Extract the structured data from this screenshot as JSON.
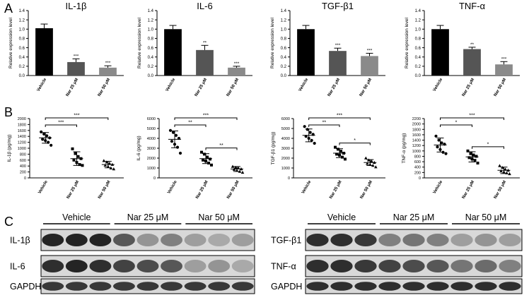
{
  "figure": {
    "panel_labels": [
      "A",
      "B",
      "C"
    ]
  },
  "chart_data": [
    {
      "type": "bar",
      "panel": "A",
      "title": "IL-1β",
      "ylabel": "Relative expression level",
      "categories": [
        "Vehicle",
        "Nar 25 μM",
        "Nar 50 μM"
      ],
      "values": [
        1.02,
        0.29,
        0.17
      ],
      "errors": [
        0.09,
        0.07,
        0.04
      ],
      "sig": [
        "",
        "***",
        "***"
      ],
      "ylim": [
        0,
        1.4
      ],
      "yticks": [
        "0.0",
        "0.2",
        "0.4",
        "0.6",
        "0.8",
        "1.0",
        "1.2",
        "1.4"
      ],
      "colors": [
        "#000000",
        "#555555",
        "#8a8a8a"
      ]
    },
    {
      "type": "bar",
      "panel": "A",
      "title": "IL-6",
      "ylabel": "Relative expression level",
      "categories": [
        "Vehicle",
        "Nar 25 μM",
        "Nar 50 μM"
      ],
      "values": [
        1.0,
        0.55,
        0.17
      ],
      "errors": [
        0.08,
        0.1,
        0.03
      ],
      "sig": [
        "",
        "**",
        "***"
      ],
      "ylim": [
        0,
        1.4
      ],
      "yticks": [
        "0.0",
        "0.2",
        "0.4",
        "0.6",
        "0.8",
        "1.0",
        "1.2",
        "1.4"
      ],
      "colors": [
        "#000000",
        "#555555",
        "#8a8a8a"
      ]
    },
    {
      "type": "bar",
      "panel": "A",
      "title": "TGF-β1",
      "ylabel": "Relative expression level",
      "categories": [
        "Vehicle",
        "Nar 25 μM",
        "Nar 50 μM"
      ],
      "values": [
        1.0,
        0.53,
        0.42
      ],
      "errors": [
        0.08,
        0.06,
        0.06
      ],
      "sig": [
        "",
        "***",
        "***"
      ],
      "ylim": [
        0,
        1.4
      ],
      "yticks": [
        "0.0",
        "0.2",
        "0.4",
        "0.6",
        "0.8",
        "1.0",
        "1.2",
        "1.4"
      ],
      "colors": [
        "#000000",
        "#555555",
        "#8a8a8a"
      ]
    },
    {
      "type": "bar",
      "panel": "A",
      "title": "TNF-α",
      "ylabel": "Relative expression level",
      "categories": [
        "Vehicle",
        "Nar 25 μM",
        "Nar 50 μM"
      ],
      "values": [
        1.0,
        0.57,
        0.24
      ],
      "errors": [
        0.08,
        0.04,
        0.06
      ],
      "sig": [
        "",
        "**",
        "***"
      ],
      "ylim": [
        0,
        1.4
      ],
      "yticks": [
        "0.0",
        "0.2",
        "0.4",
        "0.6",
        "0.8",
        "1.0",
        "1.2",
        "1.4"
      ],
      "colors": [
        "#000000",
        "#555555",
        "#8a8a8a"
      ]
    },
    {
      "type": "scatter",
      "panel": "B",
      "ylabel": "IL-1β (pg/mg)",
      "categories": [
        "Vehicle",
        "Nar 25 μM",
        "Nar 50 μM"
      ],
      "ylim": [
        0,
        2000
      ],
      "yticks": [
        "0",
        "200",
        "400",
        "600",
        "800",
        "1000",
        "1200",
        "1400",
        "1600",
        "1800",
        "2000"
      ],
      "groups": [
        {
          "marker": "circle",
          "mean": 1350,
          "sd": 180,
          "points": [
            1550,
            1480,
            1420,
            1350,
            1300,
            1260,
            1200,
            1100
          ]
        },
        {
          "marker": "square",
          "mean": 650,
          "sd": 230,
          "points": [
            980,
            820,
            720,
            650,
            600,
            520,
            450,
            420
          ]
        },
        {
          "marker": "triangle",
          "mean": 450,
          "sd": 110,
          "points": [
            580,
            530,
            490,
            450,
            420,
            380,
            330,
            300
          ]
        }
      ],
      "brackets": [
        {
          "from": 0,
          "to": 1,
          "label": "***"
        },
        {
          "from": 0,
          "to": 2,
          "label": "***"
        }
      ]
    },
    {
      "type": "scatter",
      "panel": "B",
      "ylabel": "IL-6 (pg/mg)",
      "categories": [
        "Vehicle",
        "Nar 25 μM",
        "Nar 50 μM"
      ],
      "ylim": [
        0,
        6000
      ],
      "yticks": [
        "0",
        "1000",
        "2000",
        "3000",
        "4000",
        "5000",
        "6000"
      ],
      "groups": [
        {
          "marker": "circle",
          "mean": 3900,
          "sd": 850,
          "points": [
            4800,
            4600,
            4300,
            4000,
            3700,
            3400,
            3100,
            2500
          ]
        },
        {
          "marker": "square",
          "mean": 1950,
          "sd": 500,
          "points": [
            2600,
            2400,
            2100,
            1900,
            1800,
            1700,
            1500,
            1300
          ]
        },
        {
          "marker": "triangle",
          "mean": 900,
          "sd": 250,
          "points": [
            1150,
            1050,
            1000,
            900,
            850,
            750,
            650,
            550
          ]
        }
      ],
      "brackets": [
        {
          "from": 0,
          "to": 1,
          "label": "**"
        },
        {
          "from": 0,
          "to": 2,
          "label": "***"
        },
        {
          "from": 1,
          "to": 2,
          "label": "**"
        }
      ]
    },
    {
      "type": "scatter",
      "panel": "B",
      "ylabel": "TGF-β1 (pg/mg)",
      "categories": [
        "Vehicle",
        "Nar 25 μM",
        "Nar 50 μM"
      ],
      "ylim": [
        0,
        6000
      ],
      "yticks": [
        "0",
        "1000",
        "2000",
        "3000",
        "4000",
        "5000",
        "6000"
      ],
      "groups": [
        {
          "marker": "circle",
          "mean": 4300,
          "sd": 650,
          "points": [
            5200,
            4900,
            4600,
            4400,
            4200,
            4000,
            3800,
            3500
          ]
        },
        {
          "marker": "square",
          "mean": 2500,
          "sd": 450,
          "points": [
            3100,
            2900,
            2700,
            2500,
            2400,
            2300,
            2100,
            1900
          ]
        },
        {
          "marker": "triangle",
          "mean": 1550,
          "sd": 300,
          "points": [
            2000,
            1800,
            1700,
            1550,
            1450,
            1350,
            1250,
            1100
          ]
        }
      ],
      "brackets": [
        {
          "from": 0,
          "to": 1,
          "label": "**"
        },
        {
          "from": 0,
          "to": 2,
          "label": "***"
        },
        {
          "from": 1,
          "to": 2,
          "label": "*"
        }
      ]
    },
    {
      "type": "scatter",
      "panel": "B",
      "ylabel": "TNF-α (pg/mg)",
      "categories": [
        "Vehicle",
        "Nar 25 μM",
        "Nar 50 μM"
      ],
      "ylim": [
        0,
        2200
      ],
      "yticks": [
        "0",
        "200",
        "400",
        "600",
        "800",
        "1000",
        "1200",
        "1400",
        "1600",
        "1800",
        "2000",
        "2200"
      ],
      "groups": [
        {
          "marker": "circle",
          "mean": 1220,
          "sd": 260,
          "points": [
            1550,
            1400,
            1300,
            1250,
            1150,
            1050,
            950,
            900
          ]
        },
        {
          "marker": "square",
          "mean": 780,
          "sd": 190,
          "points": [
            1000,
            900,
            850,
            800,
            750,
            700,
            650,
            550
          ]
        },
        {
          "marker": "triangle",
          "mean": 280,
          "sd": 120,
          "points": [
            450,
            380,
            320,
            280,
            250,
            220,
            180,
            150
          ]
        }
      ],
      "brackets": [
        {
          "from": 0,
          "to": 1,
          "label": "*"
        },
        {
          "from": 0,
          "to": 2,
          "label": "***"
        },
        {
          "from": 1,
          "to": 2,
          "label": "*"
        }
      ]
    }
  ],
  "blots": [
    {
      "id": "left",
      "groups": [
        "Vehicle",
        "Nar 25 μM",
        "Nar 50 μM"
      ],
      "rows": [
        {
          "label": "IL-1β",
          "intensity": [
            0.95,
            0.95,
            0.95,
            0.7,
            0.4,
            0.5,
            0.35,
            0.3,
            0.35
          ]
        },
        {
          "label": "IL-6",
          "intensity": [
            0.9,
            0.95,
            0.9,
            0.8,
            0.75,
            0.7,
            0.35,
            0.4,
            0.3
          ]
        },
        {
          "label": "GAPDH",
          "intensity": [
            0.85,
            0.85,
            0.85,
            0.85,
            0.85,
            0.85,
            0.85,
            0.85,
            0.85
          ]
        }
      ]
    },
    {
      "id": "right",
      "groups": [
        "Vehicle",
        "Nar 25 μM",
        "Nar 50 μM"
      ],
      "rows": [
        {
          "label": "TGF-β1",
          "intensity": [
            0.9,
            0.9,
            0.85,
            0.5,
            0.55,
            0.5,
            0.35,
            0.4,
            0.35
          ]
        },
        {
          "label": "TNF-α",
          "intensity": [
            0.9,
            0.9,
            0.85,
            0.8,
            0.75,
            0.7,
            0.55,
            0.6,
            0.5
          ]
        },
        {
          "label": "GAPDH",
          "intensity": [
            0.9,
            0.9,
            0.9,
            0.9,
            0.9,
            0.9,
            0.9,
            0.9,
            0.9
          ]
        }
      ]
    }
  ]
}
